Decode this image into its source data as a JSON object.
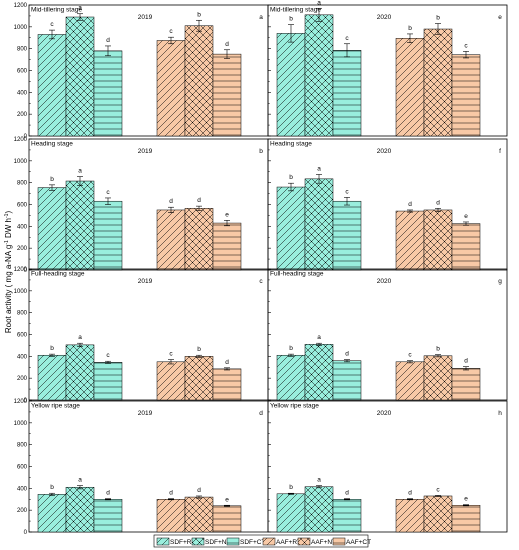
{
  "colors": {
    "SDF": "#99eedd",
    "AAF": "#f8c9a6",
    "stroke": "#000000"
  },
  "figure": {
    "ylabel_parts": [
      "Root activity ( mg a-NA g",
      "-1",
      " DW h",
      "-1",
      ")"
    ],
    "legend": [
      "SDF+RT",
      "SDF+NT",
      "SDF+CT",
      "AAF+RT",
      "AAF+NT",
      "AAF+CT"
    ]
  },
  "chart_data": [
    {
      "type": "bar",
      "panel": "a",
      "stage": "Mid-tillering stage",
      "year": "2019",
      "categories": [
        "SDF+RT",
        "SDF+NT",
        "SDF+CT",
        "AAF+RT",
        "AAF+NT",
        "AAF+CT"
      ],
      "values": [
        930,
        1090,
        780,
        875,
        1010,
        750
      ],
      "errors": [
        40,
        30,
        45,
        30,
        50,
        40
      ],
      "letters": [
        "c",
        "a",
        "d",
        "c",
        "b",
        "d"
      ],
      "ylim": [
        0,
        1200
      ],
      "yticks": [
        0,
        200,
        400,
        600,
        800,
        1000,
        1200
      ],
      "ytick_labels": [
        "0",
        "200",
        "400",
        "600",
        "800",
        "1000",
        "1200"
      ],
      "grid": false
    },
    {
      "type": "bar",
      "panel": "e",
      "stage": "Mid-tillering stage",
      "year": "2020",
      "categories": [
        "SDF+RT",
        "SDF+NT",
        "SDF+CT",
        "AAF+RT",
        "AAF+NT",
        "AAF+CT"
      ],
      "values": [
        940,
        1110,
        785,
        895,
        980,
        745
      ],
      "errors": [
        80,
        60,
        60,
        40,
        50,
        30
      ],
      "letters": [
        "b",
        "a",
        "c",
        "b",
        "b",
        "c"
      ],
      "ylim": [
        0,
        1200
      ],
      "yticks": [
        0,
        200,
        400,
        600,
        800,
        1000,
        1200
      ],
      "ytick_labels": [],
      "grid": false
    },
    {
      "type": "bar",
      "panel": "b",
      "stage": "Heading stage",
      "year": "2019",
      "categories": [
        "SDF+RT",
        "SDF+NT",
        "SDF+CT",
        "AAF+RT",
        "AAF+NT",
        "AAF+CT"
      ],
      "values": [
        755,
        815,
        630,
        550,
        565,
        430
      ],
      "errors": [
        25,
        40,
        30,
        25,
        20,
        25
      ],
      "letters": [
        "b",
        "a",
        "c",
        "d",
        "d",
        "e"
      ],
      "ylim": [
        0,
        1200
      ],
      "yticks": [
        0,
        200,
        400,
        600,
        800,
        1000,
        1200
      ],
      "ytick_labels": [
        "0",
        "200",
        "400",
        "600",
        "800",
        "1000",
        "1200"
      ],
      "grid": false
    },
    {
      "type": "bar",
      "panel": "f",
      "stage": "Heading stage",
      "year": "2020",
      "categories": [
        "SDF+RT",
        "SDF+NT",
        "SDF+CT",
        "AAF+RT",
        "AAF+NT",
        "AAF+CT"
      ],
      "values": [
        760,
        835,
        630,
        540,
        550,
        425
      ],
      "errors": [
        35,
        40,
        35,
        10,
        15,
        15
      ],
      "letters": [
        "b",
        "a",
        "c",
        "d",
        "d",
        "e"
      ],
      "ylim": [
        0,
        1200
      ],
      "yticks": [
        0,
        200,
        400,
        600,
        800,
        1000,
        1200
      ],
      "ytick_labels": [],
      "grid": false
    },
    {
      "type": "bar",
      "panel": "c",
      "stage": "Full-heading stage",
      "year": "2019",
      "categories": [
        "SDF+RT",
        "SDF+NT",
        "SDF+CT",
        "AAF+RT",
        "AAF+NT",
        "AAF+CT"
      ],
      "values": [
        410,
        505,
        345,
        350,
        400,
        285
      ],
      "errors": [
        10,
        15,
        10,
        20,
        10,
        10
      ],
      "letters": [
        "b",
        "a",
        "c",
        "c",
        "b",
        "d"
      ],
      "ylim": [
        0,
        1200
      ],
      "yticks": [
        0,
        200,
        400,
        600,
        800,
        1000,
        1200
      ],
      "ytick_labels": [
        "0",
        "200",
        "400",
        "600",
        "800",
        "1000",
        "1200"
      ],
      "grid": false
    },
    {
      "type": "bar",
      "panel": "g",
      "stage": "Full-heading stage",
      "year": "2020",
      "categories": [
        "SDF+RT",
        "SDF+NT",
        "SDF+CT",
        "AAF+RT",
        "AAF+NT",
        "AAF+CT"
      ],
      "values": [
        410,
        510,
        360,
        350,
        405,
        290
      ],
      "errors": [
        10,
        10,
        10,
        10,
        10,
        15
      ],
      "letters": [
        "b",
        "a",
        "d",
        "c",
        "b",
        "d"
      ],
      "ylim": [
        0,
        1200
      ],
      "yticks": [
        0,
        200,
        400,
        600,
        800,
        1000,
        1200
      ],
      "ytick_labels": [],
      "grid": false
    },
    {
      "type": "bar",
      "panel": "d",
      "stage": "Yellow ripe stage",
      "year": "2019",
      "categories": [
        "SDF+RT",
        "SDF+NT",
        "SDF+CT",
        "AAF+RT",
        "AAF+NT",
        "AAF+CT"
      ],
      "values": [
        345,
        410,
        300,
        300,
        320,
        240
      ],
      "errors": [
        10,
        15,
        5,
        5,
        10,
        5
      ],
      "letters": [
        "b",
        "a",
        "d",
        "d",
        "d",
        "e"
      ],
      "ylim": [
        0,
        1200
      ],
      "yticks": [
        0,
        200,
        400,
        600,
        800,
        1000,
        1200
      ],
      "ytick_labels": [
        "0",
        "200",
        "400",
        "600",
        "800",
        "1000",
        "1200"
      ],
      "grid": false
    },
    {
      "type": "bar",
      "panel": "h",
      "stage": "Yellow ripe stage",
      "year": "2020",
      "categories": [
        "SDF+RT",
        "SDF+NT",
        "SDF+CT",
        "AAF+RT",
        "AAF+NT",
        "AAF+CT"
      ],
      "values": [
        350,
        415,
        300,
        300,
        330,
        245
      ],
      "errors": [
        5,
        10,
        5,
        5,
        5,
        5
      ],
      "letters": [
        "b",
        "a",
        "d",
        "d",
        "c",
        "e"
      ],
      "ylim": [
        0,
        1200
      ],
      "yticks": [
        0,
        200,
        400,
        600,
        800,
        1000,
        1200
      ],
      "ytick_labels": [],
      "grid": false
    }
  ]
}
